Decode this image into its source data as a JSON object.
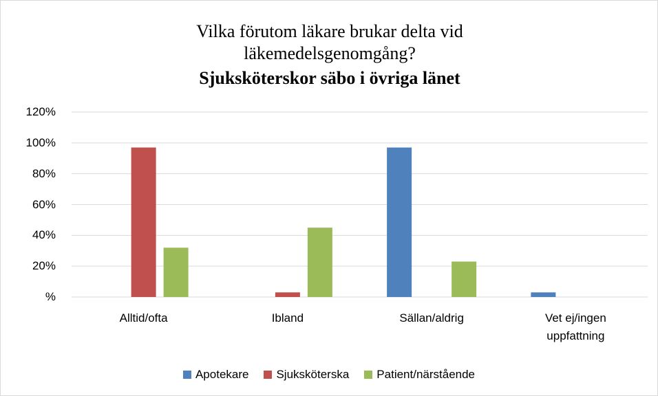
{
  "chart_data": {
    "type": "bar",
    "title": "Vilka förutom läkare brukar delta vid läkemedelsgenomgång?",
    "subtitle": "Sjuksköterskor säbo i övriga länet",
    "categories": [
      "Alltid/ofta",
      "Ibland",
      "Sällan/aldrig",
      "Vet ej/ingen uppfattning"
    ],
    "series": [
      {
        "name": "Apotekare",
        "color": "#4f81bd",
        "values": [
          0,
          0,
          97,
          3
        ]
      },
      {
        "name": "Sjuksköterska",
        "color": "#c0504d",
        "values": [
          97,
          3,
          0,
          0
        ]
      },
      {
        "name": "Patient/närstående",
        "color": "#9bbb59",
        "values": [
          32,
          45,
          23,
          0
        ]
      }
    ],
    "ylim": [
      0,
      120
    ],
    "yticks": [
      {
        "value": 0,
        "label": "%"
      },
      {
        "value": 20,
        "label": "20%"
      },
      {
        "value": 40,
        "label": "40%"
      },
      {
        "value": 60,
        "label": "60%"
      },
      {
        "value": 80,
        "label": "80%"
      },
      {
        "value": 100,
        "label": "100%"
      },
      {
        "value": 120,
        "label": "120%"
      }
    ],
    "grid": true,
    "legend": "bottom"
  }
}
